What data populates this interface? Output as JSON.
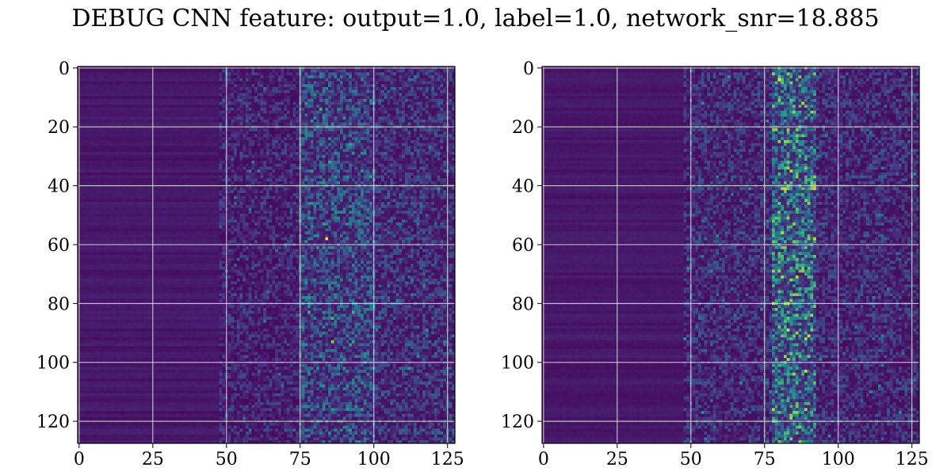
{
  "title": "DEBUG CNN feature: output=1.0, label=1.0, network_snr=18.885",
  "colors": {
    "colormap": "viridis",
    "low": "#440154",
    "mid": "#21918c",
    "high": "#fde725",
    "grid": "#d8d8d8"
  },
  "chart_data": [
    {
      "type": "heatmap",
      "panel": "left",
      "title": "",
      "xlabel": "",
      "ylabel": "",
      "xlim": [
        -0.5,
        127.5
      ],
      "ylim": [
        127.5,
        -0.5
      ],
      "y_inverted": true,
      "grid": true,
      "colormap": "viridis",
      "xticks": [
        0,
        25,
        50,
        75,
        100,
        125
      ],
      "yticks": [
        0,
        20,
        40,
        60,
        80,
        100,
        120
      ],
      "xtick_labels": [
        "0",
        "25",
        "50",
        "75",
        "100",
        "125"
      ],
      "ytick_labels": [
        "0",
        "20",
        "40",
        "60",
        "80",
        "100",
        "120"
      ],
      "shape": [
        128,
        128
      ],
      "regions": [
        {
          "x_range": [
            0,
            47
          ],
          "mean_intensity": 0.05,
          "description": "horizontal banding, near zero"
        },
        {
          "x_range": [
            48,
            74
          ],
          "mean_intensity": 0.15
        },
        {
          "x_range": [
            75,
            100
          ],
          "mean_intensity": 0.3
        },
        {
          "x_range": [
            101,
            127
          ],
          "mean_intensity": 0.2
        }
      ],
      "bright_spots": [
        {
          "x": 84,
          "y": 58,
          "value": 1.0
        },
        {
          "x": 86,
          "y": 93,
          "value": 0.85
        },
        {
          "x": 82,
          "y": 14,
          "value": 0.7
        },
        {
          "x": 85,
          "y": 32,
          "value": 0.65
        },
        {
          "x": 83,
          "y": 53,
          "value": 0.6
        }
      ]
    },
    {
      "type": "heatmap",
      "panel": "right",
      "title": "",
      "xlabel": "",
      "ylabel": "",
      "xlim": [
        -0.5,
        127.5
      ],
      "ylim": [
        127.5,
        -0.5
      ],
      "y_inverted": true,
      "grid": true,
      "colormap": "viridis",
      "xticks": [
        0,
        25,
        50,
        75,
        100,
        125
      ],
      "yticks": [
        0,
        20,
        40,
        60,
        80,
        100,
        120
      ],
      "xtick_labels": [
        "0",
        "25",
        "50",
        "75",
        "100",
        "125"
      ],
      "ytick_labels": [
        "0",
        "20",
        "40",
        "60",
        "80",
        "100",
        "120"
      ],
      "shape": [
        128,
        128
      ],
      "regions": [
        {
          "x_range": [
            0,
            47
          ],
          "mean_intensity": 0.05,
          "description": "horizontal banding, near zero"
        },
        {
          "x_range": [
            48,
            77
          ],
          "mean_intensity": 0.18
        },
        {
          "x_range": [
            78,
            92
          ],
          "mean_intensity": 0.5,
          "description": "bright vertical band"
        },
        {
          "x_range": [
            93,
            127
          ],
          "mean_intensity": 0.18
        }
      ],
      "bright_spots": [
        {
          "x": 88,
          "y": 12,
          "value": 0.95
        },
        {
          "x": 84,
          "y": 35,
          "value": 0.95
        },
        {
          "x": 81,
          "y": 41,
          "value": 0.9
        },
        {
          "x": 84,
          "y": 72,
          "value": 0.9
        },
        {
          "x": 86,
          "y": 90,
          "value": 0.9
        },
        {
          "x": 85,
          "y": 104,
          "value": 0.9
        },
        {
          "x": 84,
          "y": 119,
          "value": 0.9
        },
        {
          "x": 84,
          "y": 126,
          "value": 0.85
        },
        {
          "x": 83,
          "y": 25,
          "value": 0.85
        },
        {
          "x": 88,
          "y": 68,
          "value": 0.85
        },
        {
          "x": 86,
          "y": 114,
          "value": 0.8
        }
      ]
    }
  ]
}
